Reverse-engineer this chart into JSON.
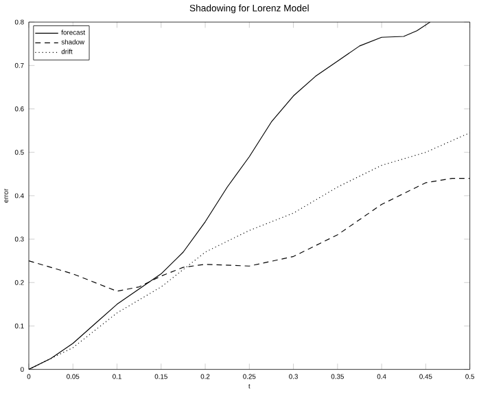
{
  "chart_data": {
    "type": "line",
    "title": "Shadowing for Lorenz Model",
    "xlabel": "t",
    "ylabel": "error",
    "xlim": [
      0,
      0.5
    ],
    "ylim": [
      0,
      0.8
    ],
    "xticks": [
      0,
      0.05,
      0.1,
      0.15,
      0.2,
      0.25,
      0.3,
      0.35,
      0.4,
      0.45,
      0.5
    ],
    "yticks": [
      0,
      0.1,
      0.2,
      0.3,
      0.4,
      0.5,
      0.6,
      0.7,
      0.8
    ],
    "legend": "top left",
    "grid": false,
    "marker": "none",
    "series": [
      {
        "name": "forecast",
        "color": "#000000",
        "line_style": "solid",
        "x": [
          0,
          0.025,
          0.05,
          0.075,
          0.1,
          0.125,
          0.15,
          0.175,
          0.2,
          0.225,
          0.25,
          0.275,
          0.3,
          0.325,
          0.35,
          0.375,
          0.4,
          0.425,
          0.44,
          0.455
        ],
        "values": [
          0,
          0.025,
          0.06,
          0.105,
          0.15,
          0.185,
          0.22,
          0.27,
          0.34,
          0.42,
          0.49,
          0.57,
          0.63,
          0.675,
          0.71,
          0.745,
          0.765,
          0.767,
          0.78,
          0.8
        ]
      },
      {
        "name": "shadow",
        "color": "#000000",
        "line_style": "dashed",
        "x": [
          0,
          0.05,
          0.1,
          0.125,
          0.15,
          0.175,
          0.2,
          0.25,
          0.3,
          0.35,
          0.4,
          0.45,
          0.48,
          0.5
        ],
        "values": [
          0.25,
          0.22,
          0.18,
          0.19,
          0.215,
          0.235,
          0.242,
          0.238,
          0.26,
          0.31,
          0.38,
          0.43,
          0.44,
          0.44
        ]
      },
      {
        "name": "drift",
        "color": "#000000",
        "line_style": "dotted",
        "x": [
          0,
          0.05,
          0.1,
          0.15,
          0.2,
          0.25,
          0.3,
          0.35,
          0.4,
          0.45,
          0.5
        ],
        "values": [
          0,
          0.05,
          0.13,
          0.19,
          0.27,
          0.32,
          0.36,
          0.42,
          0.47,
          0.5,
          0.545
        ]
      }
    ]
  }
}
